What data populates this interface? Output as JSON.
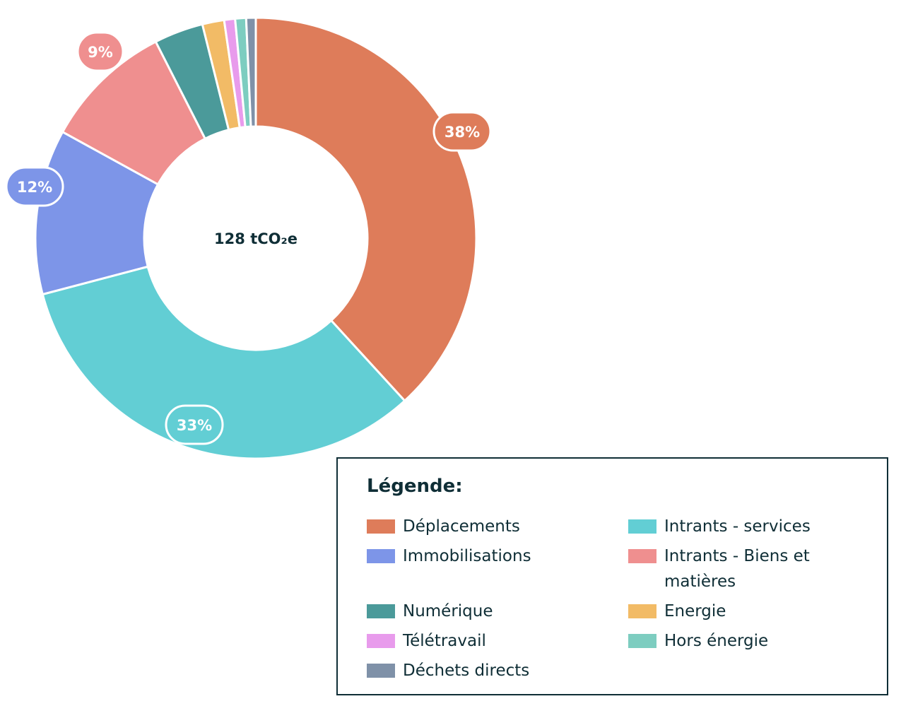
{
  "chart_data": {
    "type": "pie",
    "variant": "donut",
    "title": "",
    "center_label": "128 tCO₂e",
    "total_value": 128,
    "unit": "tCO2e",
    "categories": [
      "Déplacements",
      "Intrants - services",
      "Immobilisations",
      "Intrants - Biens et matières",
      "Numérique",
      "Energie",
      "Télétravail",
      "Hors énergie",
      "Déchets directs"
    ],
    "values": [
      38.2,
      32.7,
      12.1,
      9.5,
      3.6,
      1.6,
      0.8,
      0.8,
      0.7
    ],
    "colors": [
      "#de7c5a",
      "#62ced4",
      "#7d95e8",
      "#ef8f8f",
      "#4b9a9a",
      "#f2bb66",
      "#e89bec",
      "#7dcdc0",
      "#7f91a8"
    ],
    "data_labels": [
      {
        "category": "Déplacements",
        "label": "38%"
      },
      {
        "category": "Intrants - services",
        "label": "33%"
      },
      {
        "category": "Immobilisations",
        "label": "12%"
      },
      {
        "category": "Intrants - Biens et matières",
        "label": "9%"
      }
    ],
    "legend_position": "bottom-right"
  },
  "legend": {
    "title": "Légende:",
    "items": [
      {
        "label": "Déplacements",
        "color": "#de7c5a"
      },
      {
        "label": "Intrants - services",
        "color": "#62ced4"
      },
      {
        "label": "Immobilisations",
        "color": "#7d95e8"
      },
      {
        "label": "Intrants - Biens et matières",
        "color": "#ef8f8f"
      },
      {
        "label": "Numérique",
        "color": "#4b9a9a"
      },
      {
        "label": "Energie",
        "color": "#f2bb66"
      },
      {
        "label": "Télétravail",
        "color": "#e89bec"
      },
      {
        "label": "Hors énergie",
        "color": "#7dcdc0"
      },
      {
        "label": "Déchets directs",
        "color": "#7f91a8"
      }
    ]
  }
}
